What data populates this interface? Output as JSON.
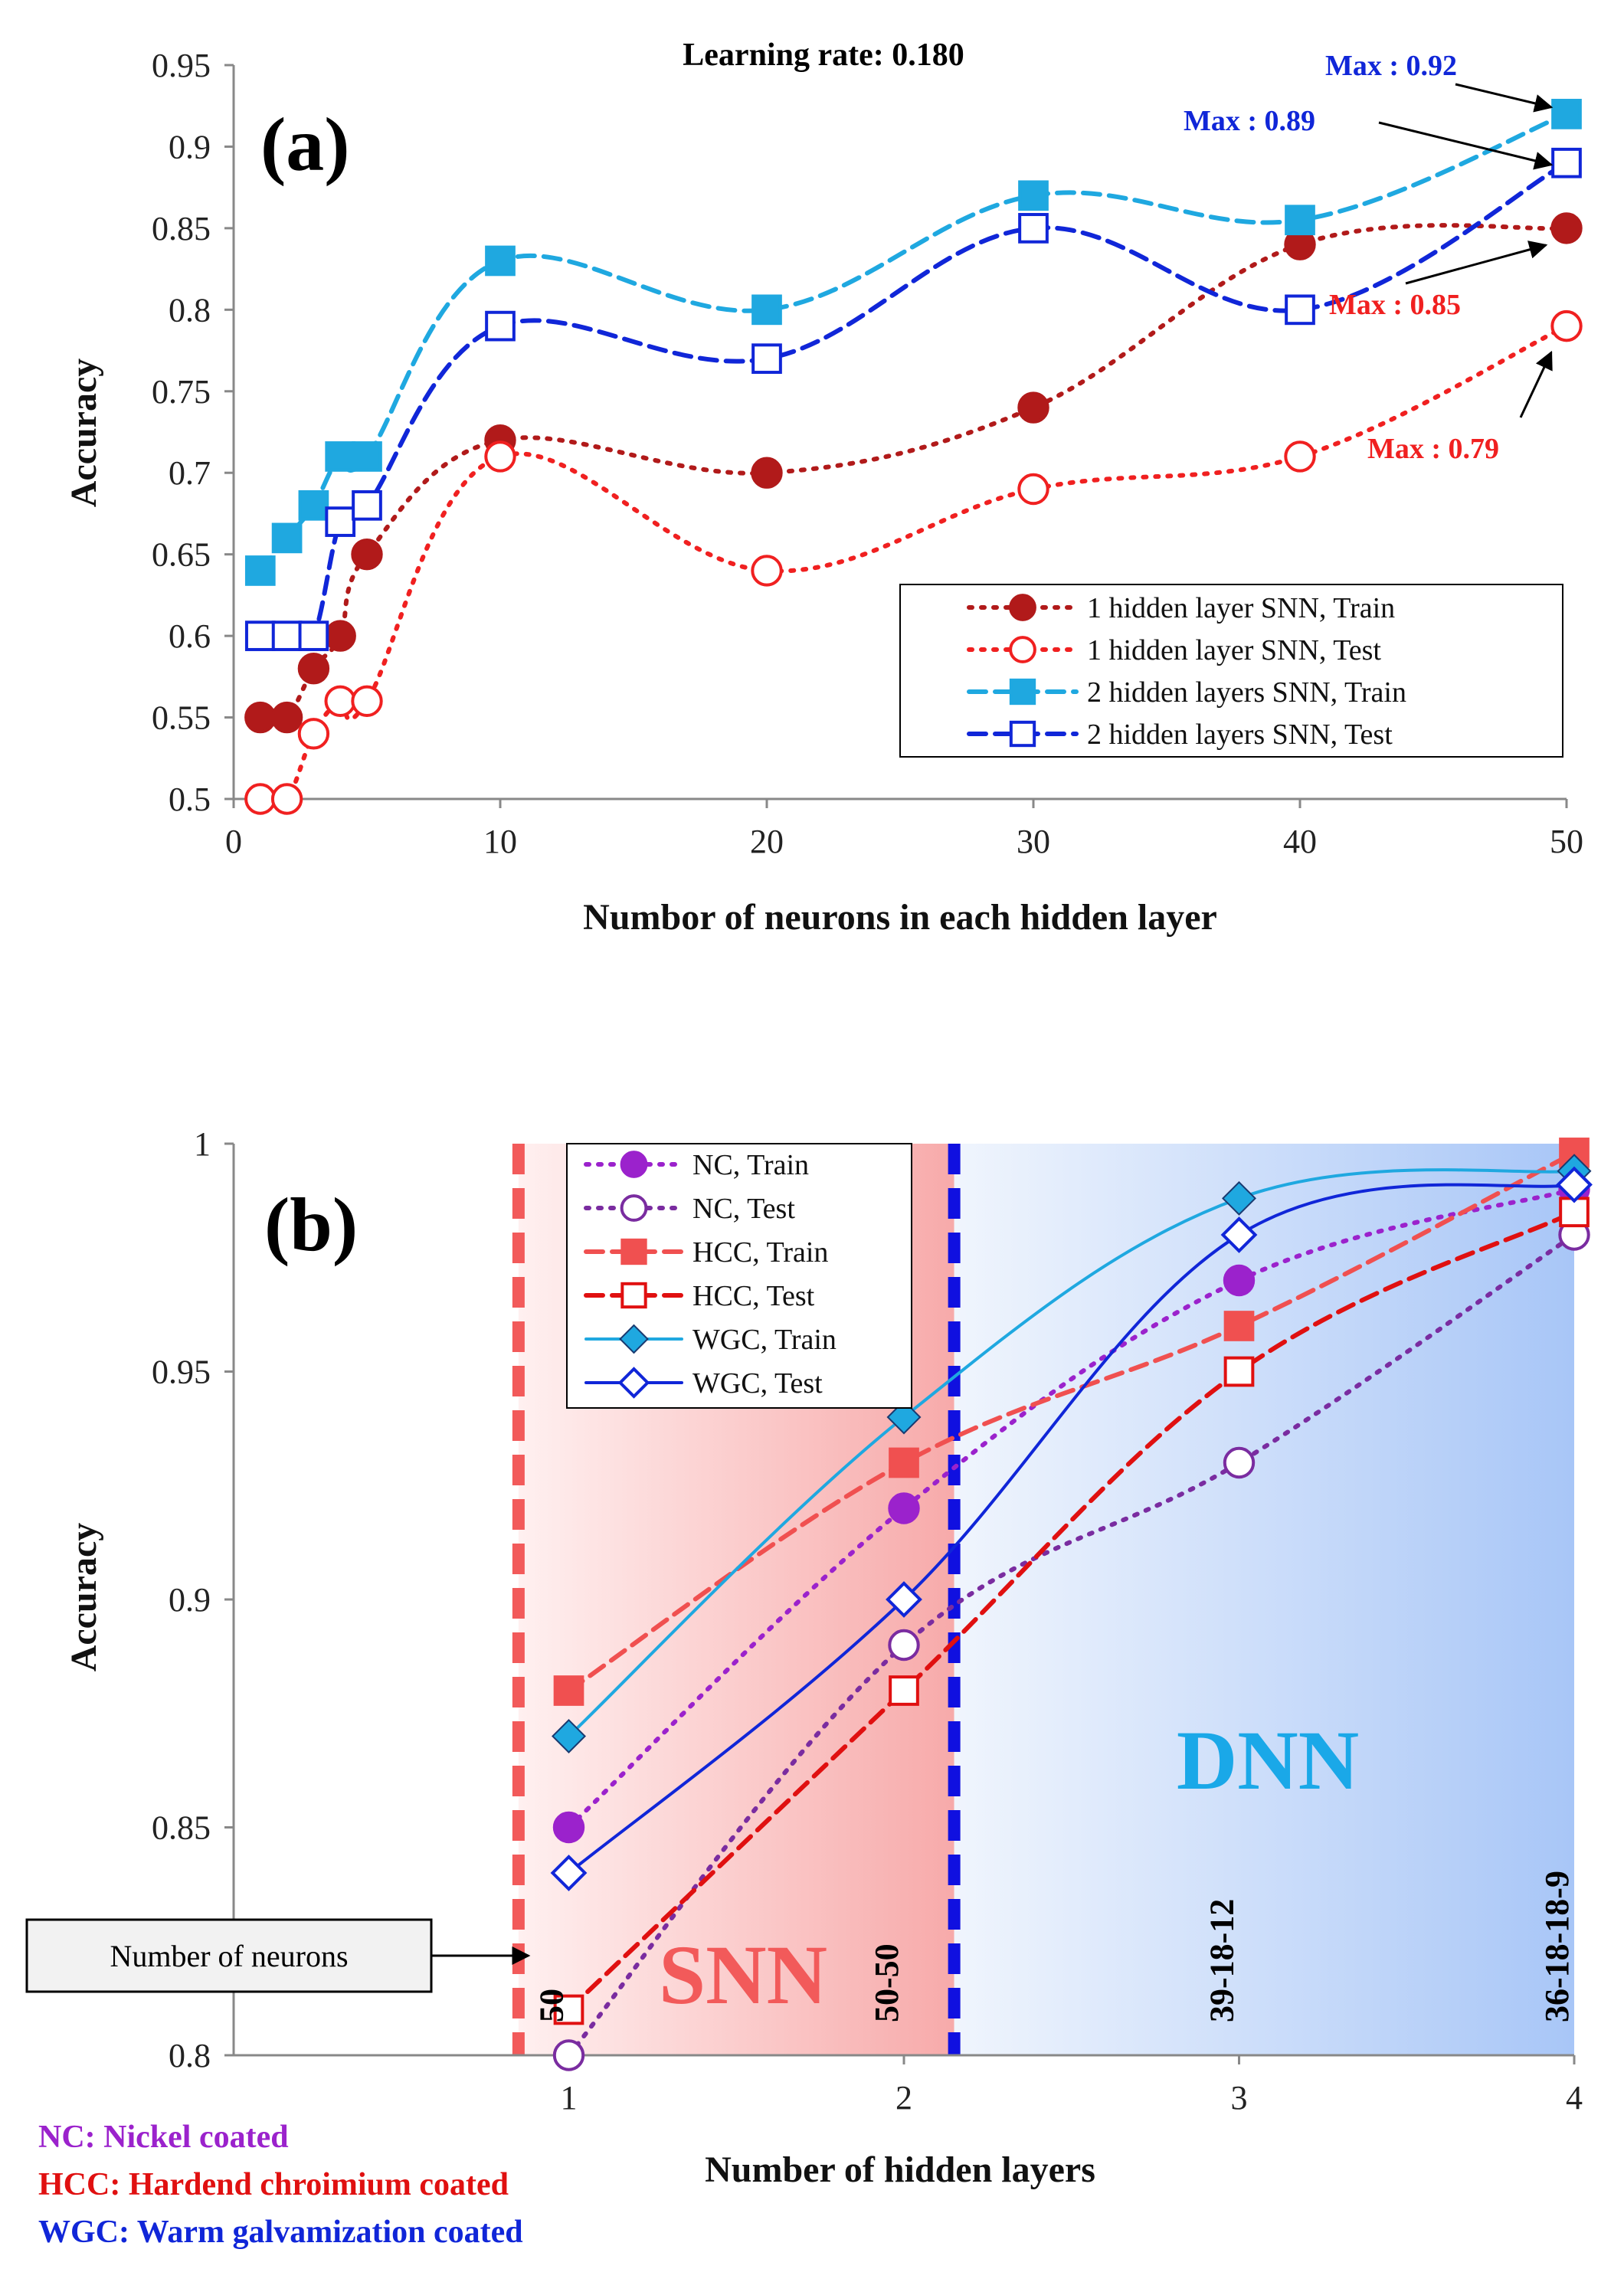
{
  "chart_data": [
    {
      "type": "line",
      "panel_label": "(a)",
      "title": "Learning rate: 0.180",
      "xlabel": "Numbor of neurons in each hidden layer",
      "ylabel": "Accuracy",
      "xlim": [
        0,
        50
      ],
      "ylim": [
        0.5,
        0.95
      ],
      "xticks": [
        "0",
        "10",
        "20",
        "30",
        "40",
        "50"
      ],
      "yticks": [
        "0.5",
        "0.55",
        "0.6",
        "0.65",
        "0.7",
        "0.75",
        "0.8",
        "0.85",
        "0.9",
        "0.95"
      ],
      "legend_position": "lower-right",
      "series": [
        {
          "name": "1 hidden layer SNN, Train",
          "color": "#b11a1a",
          "marker": "filled-circle",
          "line": "dotted",
          "x": [
            1,
            2,
            3,
            4,
            5,
            10,
            20,
            30,
            40,
            50
          ],
          "y": [
            0.55,
            0.55,
            0.58,
            0.6,
            0.65,
            0.72,
            0.7,
            0.74,
            0.84,
            0.85
          ]
        },
        {
          "name": "1 hidden layer SNN, Test",
          "color": "#f02020",
          "marker": "open-circle",
          "line": "dotted",
          "x": [
            1,
            2,
            3,
            4,
            5,
            10,
            20,
            30,
            40,
            50
          ],
          "y": [
            0.5,
            0.5,
            0.54,
            0.56,
            0.56,
            0.71,
            0.64,
            0.69,
            0.71,
            0.79
          ]
        },
        {
          "name": "2 hidden layers SNN, Train",
          "color": "#1fa8e0",
          "marker": "filled-square",
          "line": "dashed",
          "x": [
            1,
            2,
            3,
            4,
            5,
            10,
            20,
            30,
            40,
            50
          ],
          "y": [
            0.64,
            0.66,
            0.68,
            0.71,
            0.71,
            0.83,
            0.8,
            0.87,
            0.855,
            0.92
          ]
        },
        {
          "name": "2 hidden layers SNN, Test",
          "color": "#1026d8",
          "marker": "open-square",
          "line": "dashed",
          "x": [
            1,
            2,
            3,
            4,
            5,
            10,
            20,
            30,
            40,
            50
          ],
          "y": [
            0.6,
            0.6,
            0.6,
            0.67,
            0.68,
            0.79,
            0.77,
            0.85,
            0.8,
            0.89
          ]
        }
      ],
      "annotations": [
        {
          "text": "Max : 0.92",
          "color": "#1026d8"
        },
        {
          "text": "Max : 0.89",
          "color": "#1026d8"
        },
        {
          "text": "Max : 0.85",
          "color": "#f02020"
        },
        {
          "text": "Max : 0.79",
          "color": "#f02020"
        }
      ]
    },
    {
      "type": "line",
      "panel_label": "(b)",
      "xlabel": "Number of hidden layers",
      "ylabel": "Accuracy",
      "xlim": [
        0,
        4
      ],
      "ylim": [
        0.8,
        1.0
      ],
      "xticks": [
        "1",
        "2",
        "3",
        "4"
      ],
      "yticks": [
        "0.8",
        "0.85",
        "0.9",
        "0.95",
        "1"
      ],
      "legend_position": "top-left",
      "regions": [
        {
          "label": "SNN",
          "color": "#f25a5a",
          "x_range": [
            0.85,
            2.15
          ]
        },
        {
          "label": "DNN",
          "color": "#1aa8e8",
          "x_range": [
            2.15,
            4
          ]
        }
      ],
      "neuron_config_label": "Number of neurons",
      "neuron_configs": [
        {
          "x": 1,
          "text": "50"
        },
        {
          "x": 2,
          "text": "50-50"
        },
        {
          "x": 3,
          "text": "39-18-12"
        },
        {
          "x": 4,
          "text": "36-18-18-9"
        }
      ],
      "series": [
        {
          "name": "NC, Train",
          "color": "#9b22cc",
          "marker": "filled-circle",
          "line": "dotted",
          "x": [
            1,
            2,
            3,
            4
          ],
          "y": [
            0.85,
            0.92,
            0.97,
            0.99
          ]
        },
        {
          "name": "NC, Test",
          "color": "#7a2ca0",
          "marker": "open-circle",
          "line": "dotted",
          "x": [
            1,
            2,
            3,
            4
          ],
          "y": [
            0.8,
            0.89,
            0.93,
            0.98
          ]
        },
        {
          "name": "HCC, Train",
          "color": "#f05050",
          "marker": "filled-square",
          "line": "dashed",
          "x": [
            1,
            2,
            3,
            4
          ],
          "y": [
            0.88,
            0.93,
            0.96,
            0.998
          ]
        },
        {
          "name": "HCC, Test",
          "color": "#e01010",
          "marker": "open-square",
          "line": "dashed",
          "x": [
            1,
            2,
            3,
            4
          ],
          "y": [
            0.81,
            0.88,
            0.95,
            0.985
          ]
        },
        {
          "name": "WGC, Train",
          "color": "#1fa8e0",
          "marker": "filled-diamond",
          "line": "solid",
          "x": [
            1,
            2,
            3,
            4
          ],
          "y": [
            0.87,
            0.94,
            0.988,
            0.994
          ]
        },
        {
          "name": "WGC, Test",
          "color": "#1026d8",
          "marker": "open-diamond",
          "line": "solid",
          "x": [
            1,
            2,
            3,
            4
          ],
          "y": [
            0.84,
            0.9,
            0.98,
            0.991
          ]
        }
      ],
      "footnotes": [
        {
          "text": "NC: Nickel coated",
          "color": "#9b22cc"
        },
        {
          "text": "HCC: Hardend chroimium coated",
          "color": "#e01010"
        },
        {
          "text": "WGC: Warm galvamization coated",
          "color": "#1026d8"
        }
      ]
    }
  ]
}
